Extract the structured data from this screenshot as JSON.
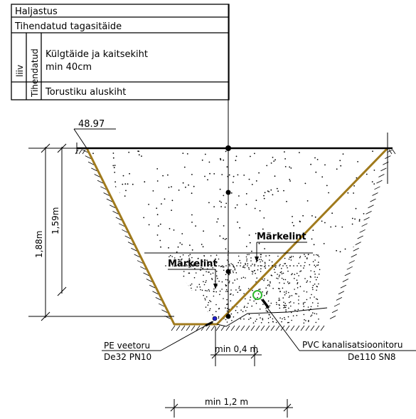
{
  "legend": {
    "row1": "Haljastus",
    "row2": "Tihendatud tagasitäide",
    "liiv": "liiv",
    "tihendatud": "Tihendatud",
    "row3_line1": "Külgtäide ja kaitsekiht",
    "row3_line2": "min 40cm",
    "row4": "Torustiku aluskiht"
  },
  "labels": {
    "elevation": "48.97",
    "depth_outer": "1,88m",
    "depth_inner": "1,59m",
    "markelint_upper": "Märkelint",
    "markelint_lower": "Märkelint",
    "pvc_line1": "PVC kanalisatsioonitoru",
    "pvc_line2": "De110 SN8",
    "pe_line1": "PE veetoru",
    "pe_line2": "De32 PN10",
    "min_spacing": "min 0,4 m",
    "min_width": "min 1,2 m"
  },
  "colors": {
    "trench_wall": "#a07a1c",
    "pvc_pipe": "#2db82d",
    "pe_pipe": "#2020d0",
    "line": "#000000"
  }
}
